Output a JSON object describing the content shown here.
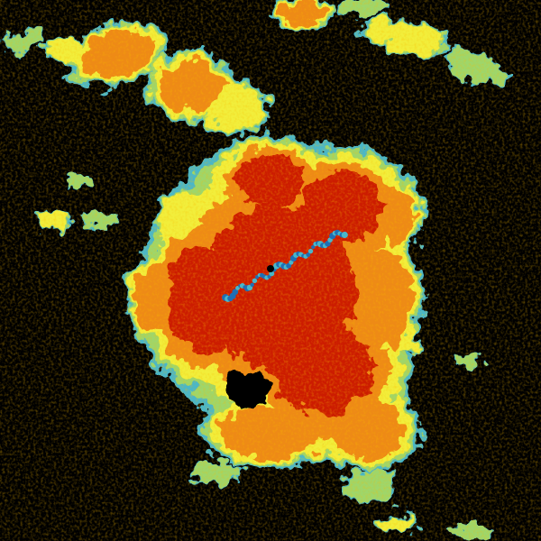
{
  "background": "#000000",
  "palette": {
    "blue": "#1f6fb5",
    "cyan": "#49b7c9",
    "green": "#9fd66a",
    "yellow": "#f2ee3a",
    "orange": "#ee8a14",
    "red": "#cc1a00",
    "dark_red": "#a80a00"
  }
}
